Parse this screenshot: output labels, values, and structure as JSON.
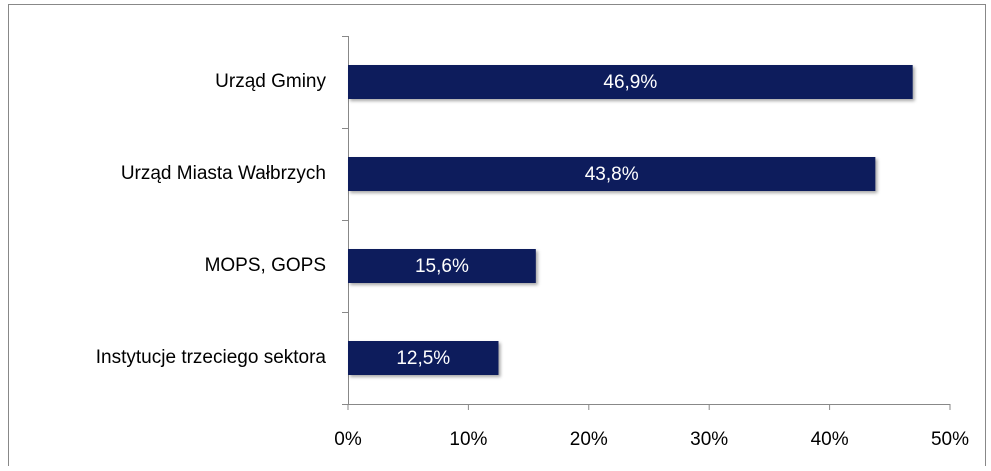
{
  "chart_data": {
    "type": "bar",
    "orientation": "horizontal",
    "categories": [
      "Urząd Gminy",
      "Urząd Miasta Wałbrzych",
      "MOPS, GOPS",
      "Instytucje trzeciego sektora"
    ],
    "values": [
      46.9,
      43.8,
      15.6,
      12.5
    ],
    "value_labels": [
      "46,9%",
      "43,8%",
      "15,6%",
      "12,5%"
    ],
    "color": "#0c1d5b",
    "xlim": [
      0,
      50
    ],
    "xticks": [
      {
        "value": 0,
        "label": "0%"
      },
      {
        "value": 10,
        "label": "10%"
      },
      {
        "value": 20,
        "label": "20%"
      },
      {
        "value": 30,
        "label": "30%"
      },
      {
        "value": 40,
        "label": "40%"
      },
      {
        "value": 50,
        "label": "50%"
      }
    ],
    "grid": false
  }
}
